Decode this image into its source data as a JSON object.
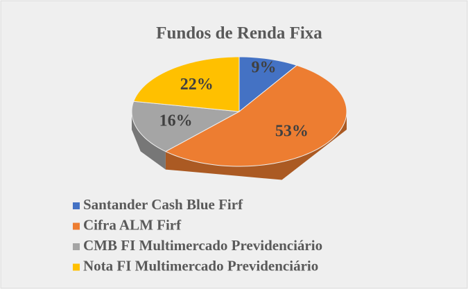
{
  "chart_data": {
    "type": "pie",
    "title": "Fundos de Renda Fixa",
    "categories": [
      "Santander Cash Blue Firf",
      "Cifra ALM Firf",
      "CMB FI Multimercado Previdenciário",
      "Nota FI Multimercado Previdenciário"
    ],
    "values": [
      9,
      53,
      16,
      22
    ],
    "value_labels": [
      "9%",
      "53%",
      "16%",
      "22%"
    ],
    "colors": [
      "#4472c4",
      "#ed7d31",
      "#a5a5a5",
      "#ffc000"
    ],
    "legend": "bottom"
  }
}
